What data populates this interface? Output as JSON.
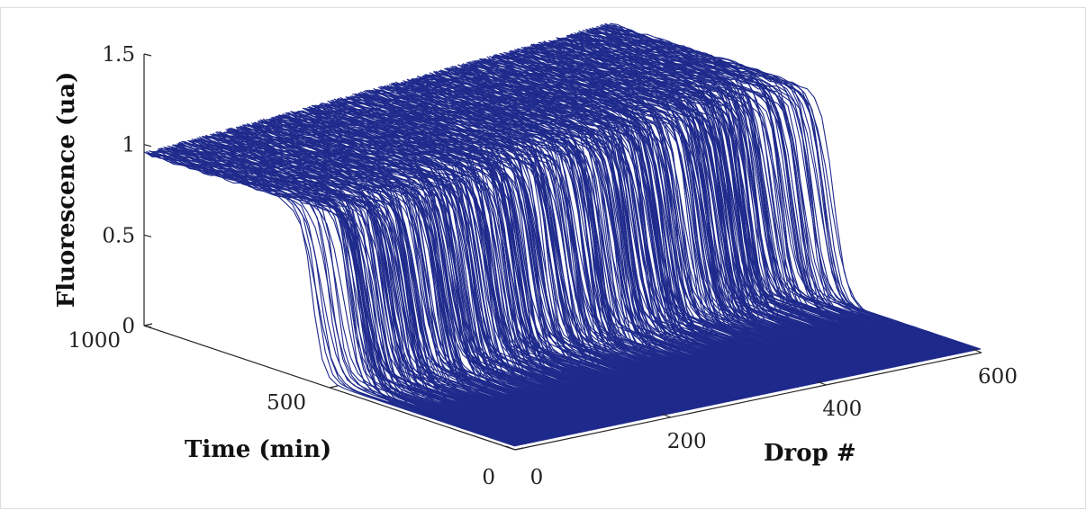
{
  "chart_data": {
    "type": "line",
    "subtype": "3d-waterfall",
    "series_count": 600,
    "series_color": "#1f2a8c",
    "x_axis": {
      "label": "Drop #",
      "range": [
        0,
        600
      ],
      "ticks": [
        0,
        200,
        400,
        600
      ]
    },
    "y_axis": {
      "label": "Time (min)",
      "range": [
        0,
        1000
      ],
      "ticks": [
        0,
        500,
        1000
      ]
    },
    "z_axis": {
      "label": "Fluorescence (ua)",
      "range": [
        0,
        1.5
      ],
      "ticks": [
        0,
        0.5,
        1,
        1.5
      ]
    },
    "trace_model": {
      "high_level": 0.95,
      "high_level_end": 1.15,
      "low_level": 0.02,
      "transition_time_range": [
        380,
        560
      ],
      "transition_width": 18
    },
    "grid": false
  }
}
